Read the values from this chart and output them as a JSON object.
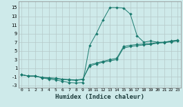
{
  "xlabel": "Humidex (Indice chaleur)",
  "bg_color": "#ceeaea",
  "grid_color": "#b5c8c8",
  "line_color": "#1a7a6e",
  "xlim": [
    -0.5,
    23.5
  ],
  "ylim": [
    -3.5,
    16.5
  ],
  "xticks": [
    0,
    1,
    2,
    3,
    4,
    5,
    6,
    7,
    8,
    9,
    10,
    11,
    12,
    13,
    14,
    15,
    16,
    17,
    18,
    19,
    20,
    21,
    22,
    23
  ],
  "yticks": [
    -3,
    -1,
    1,
    3,
    5,
    7,
    9,
    11,
    13,
    15
  ],
  "series1_x": [
    0,
    1,
    2,
    3,
    4,
    5,
    6,
    7,
    8,
    9,
    10,
    11,
    12,
    13,
    14,
    15,
    16,
    17,
    18,
    19,
    20,
    21,
    22,
    23
  ],
  "series1_y": [
    -0.5,
    -0.8,
    -0.8,
    -1.2,
    -1.5,
    -1.7,
    -2.0,
    -2.3,
    -2.4,
    -2.3,
    6.2,
    9.0,
    12.2,
    15.0,
    15.0,
    14.9,
    13.5,
    8.5,
    7.0,
    7.3,
    7.0,
    7.0,
    7.3,
    7.5
  ],
  "series2_x": [
    0,
    1,
    2,
    3,
    4,
    5,
    6,
    7,
    8,
    9,
    10,
    11,
    12,
    13,
    14,
    15,
    16,
    17,
    18,
    19,
    20,
    21,
    22,
    23
  ],
  "series2_y": [
    -0.5,
    -0.8,
    -0.8,
    -1.2,
    -1.3,
    -1.4,
    -1.6,
    -1.7,
    -1.8,
    -1.6,
    1.8,
    2.2,
    2.6,
    3.0,
    3.3,
    6.0,
    6.3,
    6.5,
    6.6,
    6.7,
    6.9,
    7.0,
    7.2,
    7.4
  ],
  "series3_x": [
    0,
    1,
    2,
    3,
    4,
    5,
    6,
    7,
    8,
    9,
    10,
    11,
    12,
    13,
    14,
    15,
    16,
    17,
    18,
    19,
    20,
    21,
    22,
    23
  ],
  "series3_y": [
    -0.5,
    -0.8,
    -0.8,
    -1.1,
    -1.2,
    -1.3,
    -1.5,
    -1.6,
    -1.7,
    -1.5,
    1.5,
    2.0,
    2.4,
    2.7,
    3.0,
    5.7,
    6.0,
    6.2,
    6.4,
    6.5,
    6.8,
    6.9,
    7.1,
    7.3
  ],
  "marker_size": 2,
  "linewidth": 0.7
}
